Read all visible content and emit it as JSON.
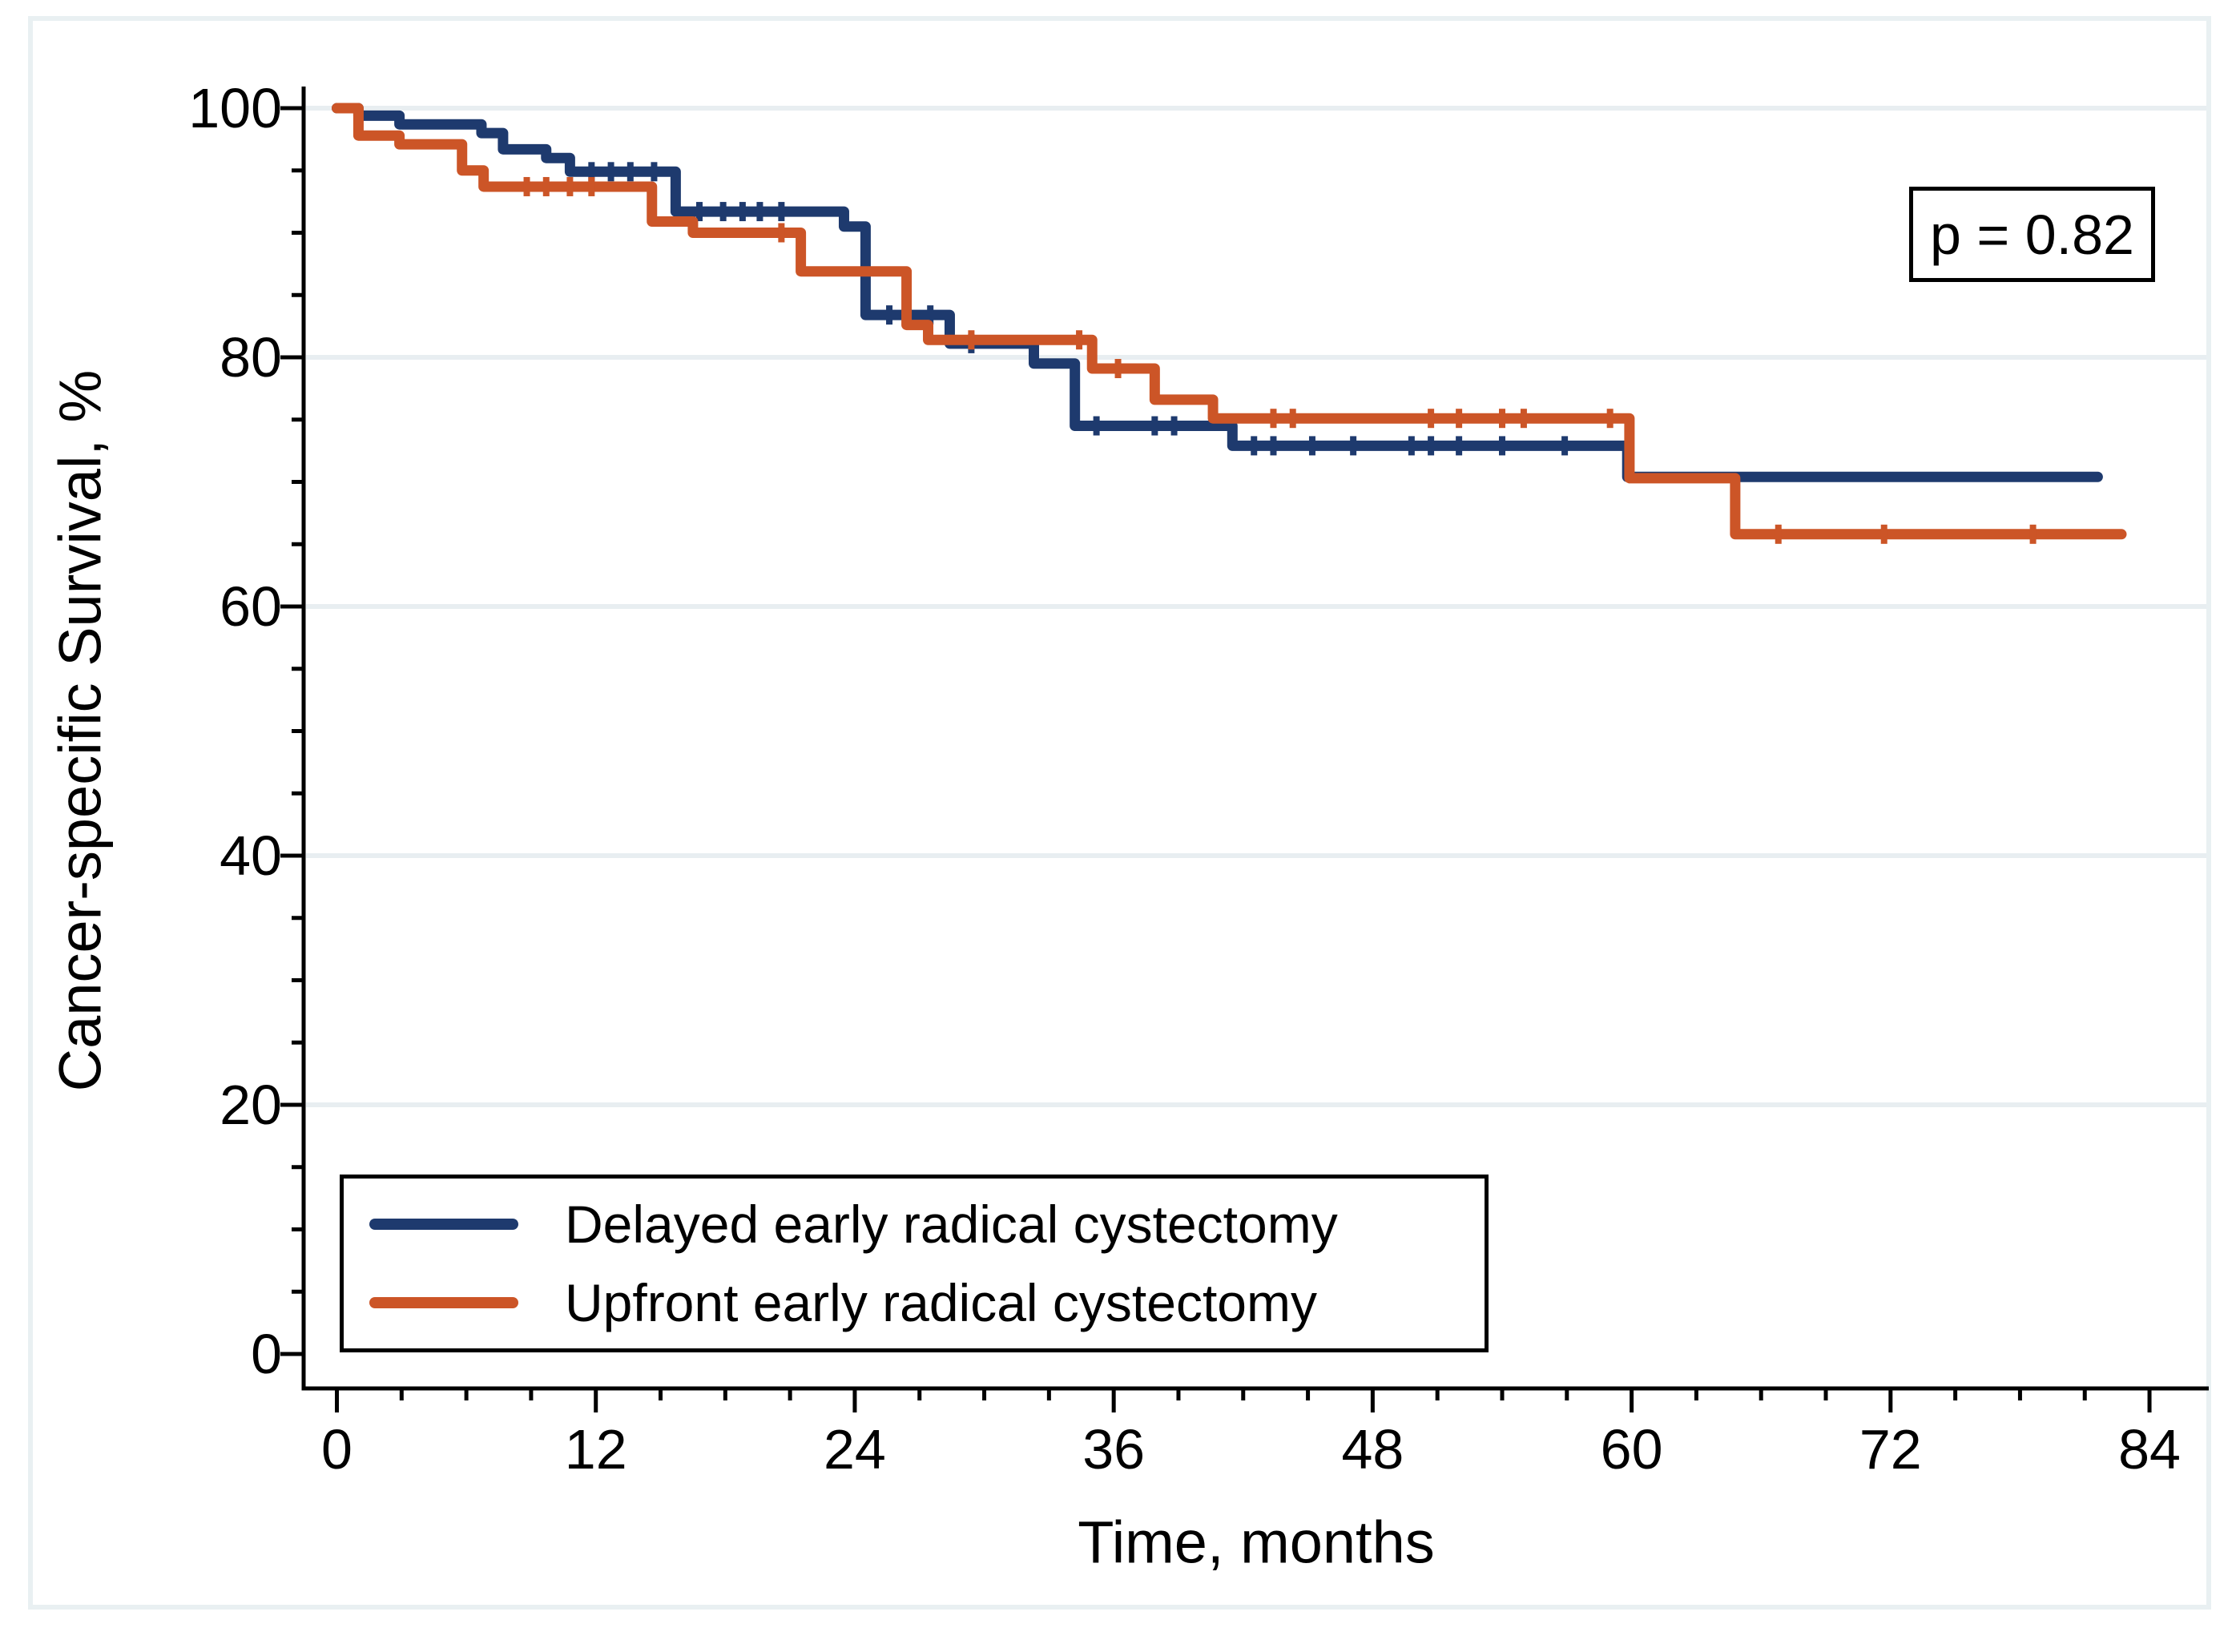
{
  "figure": {
    "p_value_label": "p = 0.82"
  },
  "chart_data": {
    "type": "line",
    "subtype": "kaplan-meier-step",
    "title": "",
    "xlabel": "Time, months",
    "ylabel": "Cancer-specific Survival, %",
    "x_ticks": [
      0,
      12,
      24,
      36,
      48,
      60,
      72,
      84
    ],
    "x_minor_step": 3,
    "y_ticks": [
      0,
      20,
      40,
      60,
      80,
      100
    ],
    "y_minor_step": 5,
    "xlim": [
      0,
      84
    ],
    "ylim": [
      0,
      100
    ],
    "grid": "horizontal-major-light",
    "legend_position": "bottom-left-inside",
    "annotation": "p = 0.82",
    "series": [
      {
        "name": "Delayed early radical cystectomy",
        "color": "#1e3a6e",
        "steps": [
          [
            0,
            100
          ],
          [
            1.0,
            99.4
          ],
          [
            2.9,
            98.7
          ],
          [
            6.7,
            98.0
          ],
          [
            7.7,
            96.7
          ],
          [
            9.7,
            96.0
          ],
          [
            10.8,
            94.9
          ],
          [
            15.7,
            91.7
          ],
          [
            23.5,
            90.5
          ],
          [
            24.5,
            83.4
          ],
          [
            28.4,
            81.1
          ],
          [
            32.3,
            79.5
          ],
          [
            34.2,
            74.5
          ],
          [
            41.5,
            72.9
          ],
          [
            59.8,
            70.4
          ],
          [
            81.6,
            70.4
          ]
        ],
        "censor_marks": [
          11.8,
          12.7,
          13.6,
          14.7,
          16.8,
          17.9,
          18.8,
          19.6,
          20.6,
          25.6,
          27.5,
          29.4,
          35.2,
          37.9,
          38.8,
          42.5,
          43.4,
          45.2,
          47.1,
          49.8,
          50.7,
          52.0,
          54.0,
          56.9
        ]
      },
      {
        "name": "Upfront early radical cystectomy",
        "color": "#cc5527",
        "steps": [
          [
            0,
            100
          ],
          [
            1.0,
            97.8
          ],
          [
            2.9,
            97.1
          ],
          [
            5.8,
            95.0
          ],
          [
            6.8,
            93.7
          ],
          [
            14.6,
            90.9
          ],
          [
            16.5,
            90.0
          ],
          [
            21.5,
            86.9
          ],
          [
            26.4,
            82.6
          ],
          [
            27.4,
            81.4
          ],
          [
            35.0,
            79.1
          ],
          [
            37.9,
            76.6
          ],
          [
            40.6,
            75.1
          ],
          [
            59.9,
            70.3
          ],
          [
            64.8,
            65.8
          ],
          [
            82.7,
            65.8
          ]
        ],
        "censor_marks": [
          8.8,
          9.7,
          10.8,
          11.8,
          20.6,
          29.4,
          34.4,
          36.2,
          43.4,
          44.3,
          50.7,
          52.0,
          54.0,
          55.0,
          59.0,
          66.8,
          71.7,
          78.6
        ]
      }
    ],
    "colors": {
      "grid": "#e8eef1",
      "frame": "#e9f0f2",
      "axis": "#000000",
      "text": "#000000",
      "background": "#ffffff"
    }
  }
}
